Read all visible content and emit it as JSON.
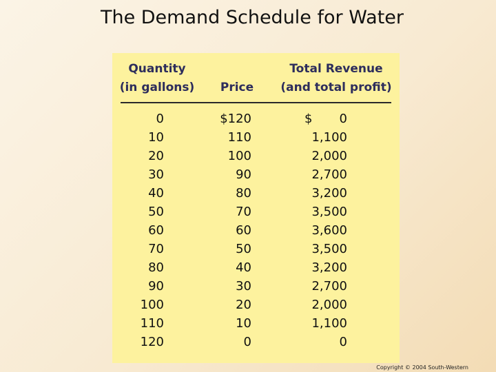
{
  "title": "The Demand Schedule for Water",
  "table": {
    "headers": {
      "quantity": [
        "Quantity",
        "(in gallons)"
      ],
      "price": "Price",
      "revenue": [
        "Total Revenue",
        "(and total profit)"
      ]
    },
    "currency_symbol": "$",
    "rows": [
      {
        "quantity": "0",
        "price": "$120",
        "revenue": "0"
      },
      {
        "quantity": "10",
        "price": "110",
        "revenue": "1,100"
      },
      {
        "quantity": "20",
        "price": "100",
        "revenue": "2,000"
      },
      {
        "quantity": "30",
        "price": "90",
        "revenue": "2,700"
      },
      {
        "quantity": "40",
        "price": "80",
        "revenue": "3,200"
      },
      {
        "quantity": "50",
        "price": "70",
        "revenue": "3,500"
      },
      {
        "quantity": "60",
        "price": "60",
        "revenue": "3,600"
      },
      {
        "quantity": "70",
        "price": "50",
        "revenue": "3,500"
      },
      {
        "quantity": "80",
        "price": "40",
        "revenue": "3,200"
      },
      {
        "quantity": "90",
        "price": "30",
        "revenue": "2,700"
      },
      {
        "quantity": "100",
        "price": "20",
        "revenue": "2,000"
      },
      {
        "quantity": "110",
        "price": "10",
        "revenue": "1,100"
      },
      {
        "quantity": "120",
        "price": "0",
        "revenue": "0"
      }
    ]
  },
  "copyright": "Copyright © 2004 South-Western"
}
